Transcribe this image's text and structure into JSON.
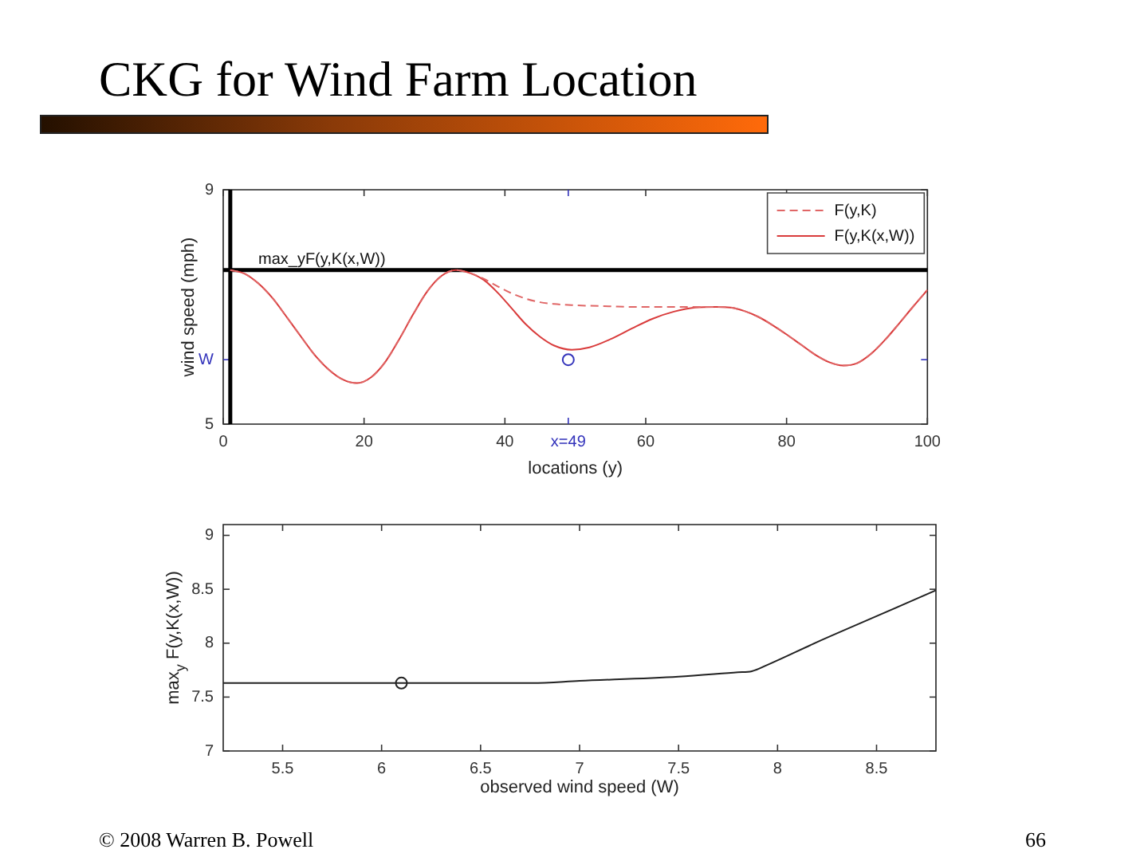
{
  "chart_data": [
    {
      "type": "line",
      "title": "CKG for Wind Farm Location",
      "xlabel": "locations (y)",
      "ylabel": "wind speed (mph)",
      "xlim": [
        0,
        100
      ],
      "ylim": [
        5,
        9
      ],
      "xticks": [
        0,
        20,
        40,
        {
          "value": 49,
          "label": "x=49"
        },
        60,
        80,
        100
      ],
      "yticks": [
        5,
        {
          "value": 6.1,
          "label": "W"
        },
        9
      ],
      "legend": "top right",
      "ref_lines": [
        {
          "axis": "x",
          "value": 1,
          "color": "#000000"
        },
        {
          "axis": "y",
          "value": 7.63,
          "label": "max_yF(y,K(x,W))",
          "color": "#000000"
        }
      ],
      "series": [
        {
          "name": "F(y,K)",
          "line_style": "dashed",
          "color": "#e06666",
          "x": [
            1,
            3,
            5,
            7,
            9,
            11,
            13,
            15,
            17,
            19,
            21,
            23,
            25,
            27,
            29,
            31,
            33,
            35,
            37,
            39,
            41,
            43,
            45,
            47,
            49.5,
            52,
            55,
            58,
            61,
            64,
            67,
            70,
            72,
            74,
            76,
            78,
            80,
            82,
            84,
            86,
            88,
            90,
            92,
            94,
            96,
            98,
            100
          ],
          "values": [
            7.63,
            7.57,
            7.4,
            7.15,
            6.83,
            6.5,
            6.18,
            5.93,
            5.76,
            5.7,
            5.8,
            6.06,
            6.45,
            6.88,
            7.27,
            7.53,
            7.63,
            7.58,
            7.48,
            7.35,
            7.23,
            7.14,
            7.08,
            7.05,
            7.03,
            7.02,
            7.01,
            7.0,
            7.0,
            7.0,
            7.0,
            7.0,
            6.99,
            6.93,
            6.83,
            6.69,
            6.53,
            6.36,
            6.19,
            6.06,
            6.0,
            6.04,
            6.2,
            6.44,
            6.72,
            7.01,
            7.29
          ]
        },
        {
          "name": "F(y,K(x,W))",
          "line_style": "solid",
          "color": "#d93b3b",
          "x": [
            1,
            3,
            5,
            7,
            9,
            11,
            13,
            15,
            17,
            19,
            21,
            23,
            25,
            27,
            29,
            31,
            33,
            35,
            37,
            39,
            41,
            43,
            45,
            47,
            49.5,
            52,
            55,
            58,
            61,
            64,
            67,
            70,
            72,
            74,
            76,
            78,
            80,
            82,
            84,
            86,
            88,
            90,
            92,
            94,
            96,
            98,
            100
          ],
          "values": [
            7.63,
            7.57,
            7.4,
            7.15,
            6.83,
            6.5,
            6.18,
            5.93,
            5.76,
            5.7,
            5.8,
            6.06,
            6.45,
            6.88,
            7.27,
            7.53,
            7.63,
            7.58,
            7.46,
            7.24,
            6.97,
            6.7,
            6.49,
            6.34,
            6.27,
            6.31,
            6.45,
            6.63,
            6.8,
            6.92,
            6.99,
            7.0,
            6.99,
            6.93,
            6.83,
            6.69,
            6.53,
            6.36,
            6.19,
            6.06,
            6.0,
            6.04,
            6.2,
            6.44,
            6.72,
            7.01,
            7.29
          ]
        },
        {
          "type": "scatter",
          "marker": "circle",
          "color": "#3333bb",
          "x": [
            49
          ],
          "values": [
            6.1
          ]
        }
      ]
    },
    {
      "type": "line",
      "xlabel": "observed wind speed (W)",
      "ylabel": "max$_{y}$ F(y,K(x,W))",
      "xlim": [
        5.2,
        8.8
      ],
      "ylim": [
        7,
        9.1
      ],
      "xticks": [
        5.5,
        6,
        6.5,
        7,
        7.5,
        8,
        8.5
      ],
      "yticks": [
        7,
        7.5,
        8,
        8.5,
        9
      ],
      "annotations": [
        "© 2008 Warren B. Powell",
        "66"
      ],
      "series": [
        {
          "line_style": "solid",
          "color": "#222222",
          "x": [
            5.2,
            6.0,
            6.76,
            7.0,
            7.5,
            7.8,
            7.87,
            7.95,
            8.2,
            8.5,
            8.8
          ],
          "values": [
            7.63,
            7.63,
            7.63,
            7.65,
            7.69,
            7.73,
            7.74,
            7.8,
            8.01,
            8.25,
            8.49
          ]
        },
        {
          "type": "scatter",
          "marker": "circle",
          "color": "#222222",
          "x": [
            6.1
          ],
          "values": [
            7.63
          ]
        }
      ]
    }
  ]
}
